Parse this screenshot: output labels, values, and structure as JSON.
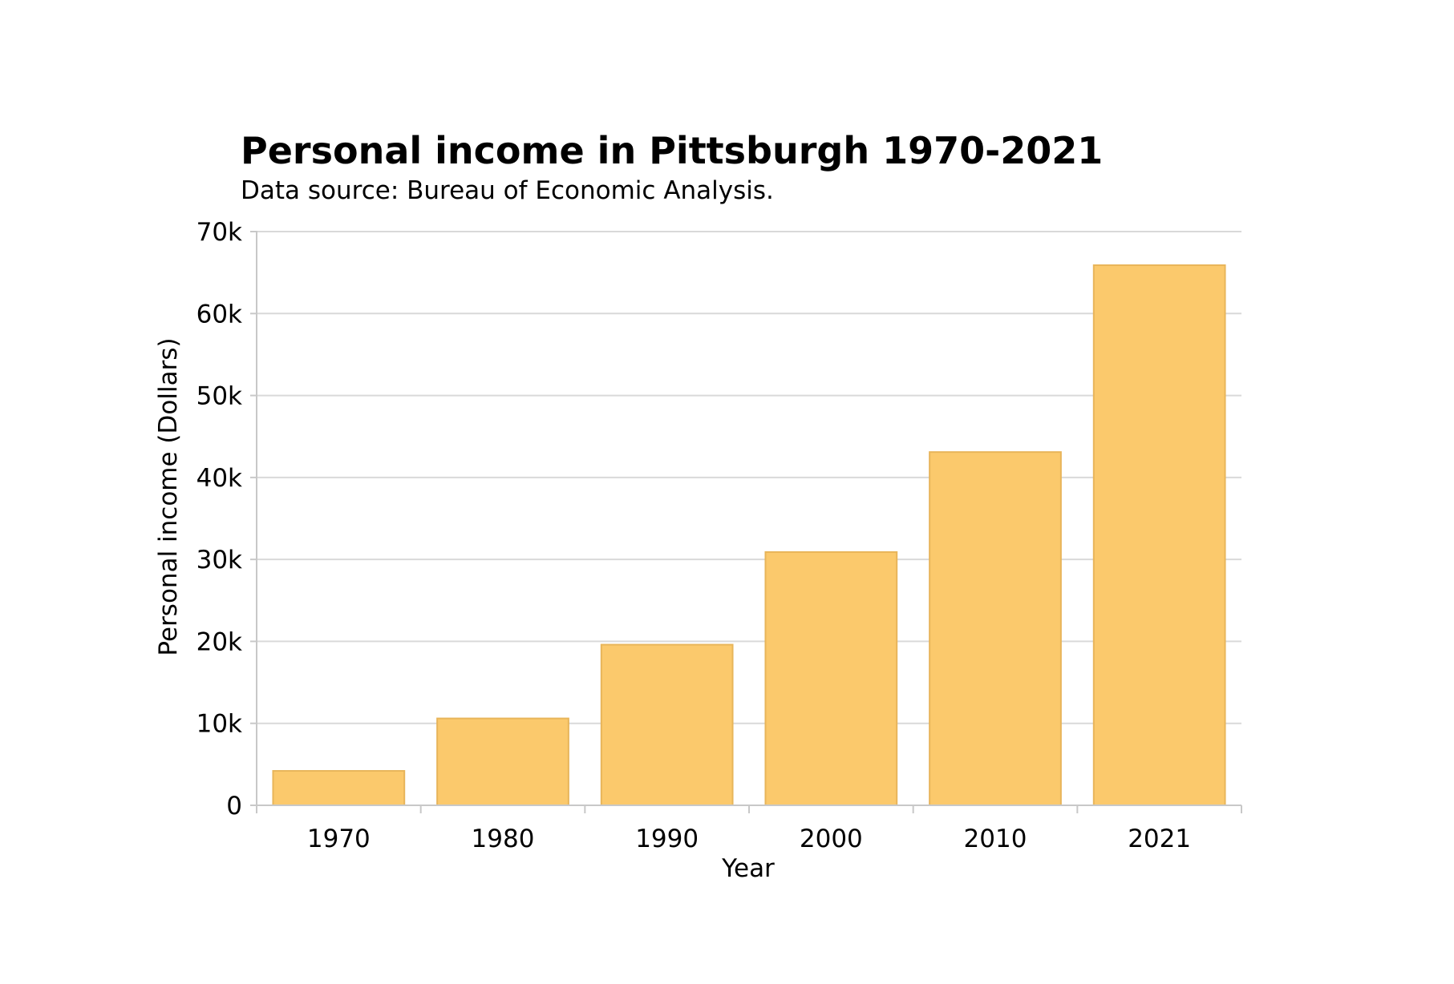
{
  "chart_data": {
    "type": "bar",
    "title": "Personal income in Pittsburgh 1970-2021",
    "subtitle": "Data source: Bureau of Economic Analysis.",
    "xlabel": "Year",
    "ylabel": "Personal income (Dollars)",
    "categories": [
      "1970",
      "1980",
      "1990",
      "2000",
      "2010",
      "2021"
    ],
    "values": [
      4200,
      10600,
      19600,
      30900,
      43100,
      65900
    ],
    "ylim": [
      0,
      70000
    ],
    "yticks": [
      0,
      10000,
      20000,
      30000,
      40000,
      50000,
      60000,
      70000
    ],
    "ytick_labels": [
      "0",
      "10k",
      "20k",
      "30k",
      "40k",
      "50k",
      "60k",
      "70k"
    ],
    "grid": true,
    "legend": "none",
    "colors": {
      "bar_fill": "#fbc96c",
      "bar_stroke": "#e8b55a",
      "gridline": "#d9d9d9",
      "axis": "#c8c8c8"
    }
  }
}
